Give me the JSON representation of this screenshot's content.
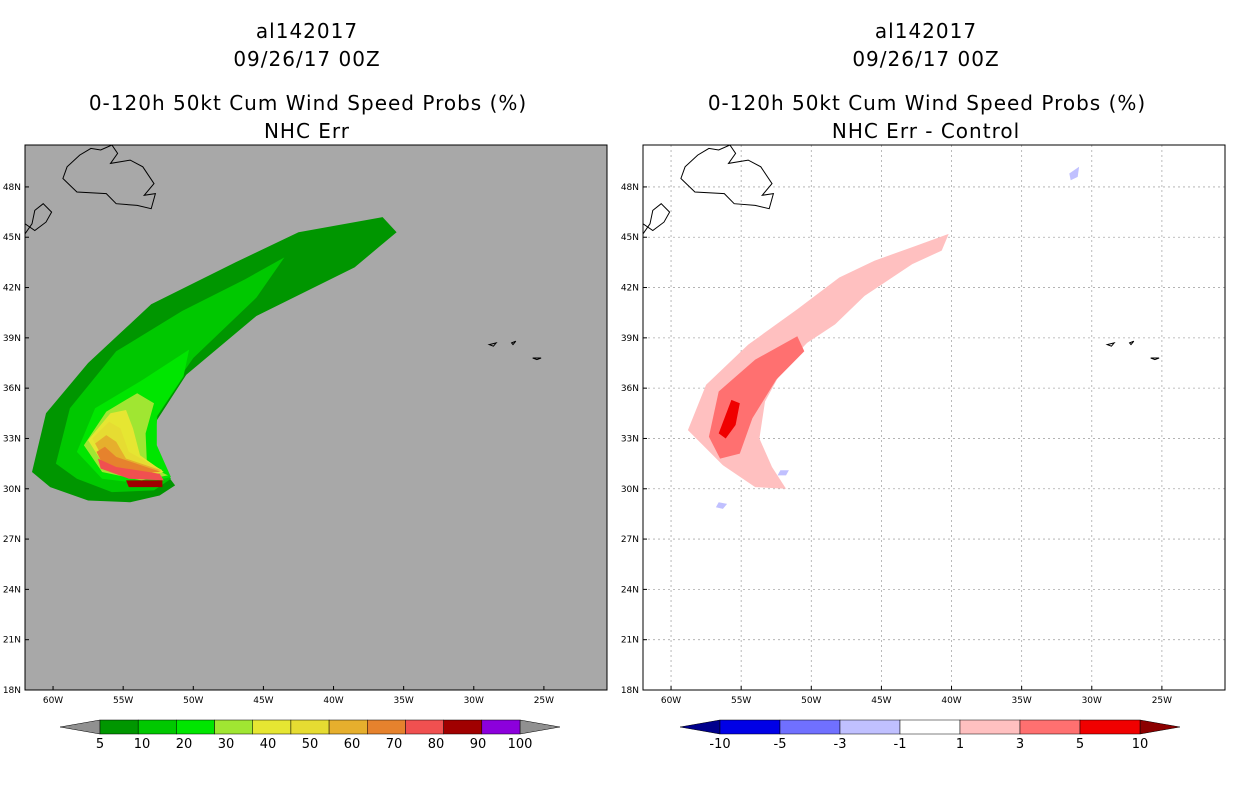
{
  "panels": [
    {
      "storm_id": "al142017",
      "valid_time": "09/26/17 00Z",
      "product": "0-120h 50kt Cum Wind Speed Probs (%)",
      "subtitle": "NHC Err",
      "background_color": "#a8a8a8",
      "grid": false,
      "legend": {
        "labels": [
          "5",
          "10",
          "20",
          "30",
          "40",
          "50",
          "60",
          "70",
          "80",
          "90",
          "100"
        ],
        "colors": [
          "#009600",
          "#00c800",
          "#00e600",
          "#a0e632",
          "#e6e632",
          "#e6dc32",
          "#e6af2d",
          "#e6822d",
          "#f05050",
          "#a00000",
          "#8c00dc"
        ],
        "arrow_left": "#909090",
        "arrow_right": "#909090"
      }
    },
    {
      "storm_id": "al142017",
      "valid_time": "09/26/17 00Z",
      "product": "0-120h 50kt Cum Wind Speed Probs (%)",
      "subtitle": "NHC Err - Control",
      "background_color": "#ffffff",
      "grid": true,
      "legend": {
        "labels": [
          "-10",
          "-5",
          "-3",
          "-1",
          "1",
          "3",
          "5",
          "10"
        ],
        "colors": [
          "#0000e6",
          "#7070ff",
          "#c0c0ff",
          "#ffffff",
          "#ffc0c0",
          "#ff7070",
          "#f00000"
        ],
        "arrow_left": "#00008c",
        "arrow_right": "#8c0000"
      }
    }
  ],
  "axes": {
    "lon_ticks": [
      "60W",
      "55W",
      "50W",
      "45W",
      "40W",
      "35W",
      "30W",
      "25W"
    ],
    "lat_ticks": [
      "48N",
      "45N",
      "42N",
      "39N",
      "36N",
      "33N",
      "30N",
      "27N",
      "24N",
      "21N",
      "18N"
    ],
    "lon_range": [
      -62,
      -20.5
    ],
    "lat_range": [
      18,
      50.5
    ]
  },
  "chart_data": [
    {
      "type": "filled-contour-map",
      "title": "0-120h 50kt Cum Wind Speed Probs (%) — NHC Err",
      "units": "%",
      "levels": [
        5,
        10,
        20,
        30,
        40,
        50,
        60,
        70,
        80,
        90,
        100
      ],
      "contours": [
        {
          "level": 5,
          "path": [
            [
              -61.5,
              31
            ],
            [
              -60.5,
              34.5
            ],
            [
              -57.5,
              37.5
            ],
            [
              -53,
              41
            ],
            [
              -47,
              43.5
            ],
            [
              -42.5,
              45.3
            ],
            [
              -36.5,
              46.2
            ],
            [
              -35.5,
              45.3
            ],
            [
              -38.5,
              43.2
            ],
            [
              -45.5,
              40.3
            ],
            [
              -50.5,
              36.8
            ],
            [
              -53.2,
              33.3
            ],
            [
              -52.2,
              31.2
            ],
            [
              -51.3,
              30.2
            ],
            [
              -52.4,
              29.6
            ],
            [
              -54.5,
              29.2
            ],
            [
              -57.5,
              29.3
            ],
            [
              -60.2,
              30.1
            ]
          ]
        },
        {
          "level": 10,
          "path": [
            [
              -59.8,
              31.5
            ],
            [
              -58.8,
              34.8
            ],
            [
              -55.5,
              38.2
            ],
            [
              -50.8,
              40.6
            ],
            [
              -46.3,
              42.5
            ],
            [
              -43.5,
              43.8
            ],
            [
              -45.5,
              41.4
            ],
            [
              -50,
              37.8
            ],
            [
              -52.5,
              34.8
            ],
            [
              -52.8,
              32.4
            ],
            [
              -51.6,
              30.6
            ],
            [
              -52.8,
              29.9
            ],
            [
              -55.8,
              29.8
            ],
            [
              -58.3,
              30.6
            ]
          ]
        },
        {
          "level": 20,
          "path": [
            [
              -58.3,
              32.2
            ],
            [
              -57,
              34.8
            ],
            [
              -53.6,
              36.5
            ],
            [
              -50.3,
              38.3
            ],
            [
              -50.7,
              36.7
            ],
            [
              -52.6,
              34.3
            ],
            [
              -52.6,
              32.6
            ],
            [
              -51.6,
              30.7
            ],
            [
              -53.6,
              30.3
            ],
            [
              -56.5,
              30.6
            ]
          ]
        },
        {
          "level": 30,
          "path": [
            [
              -57.8,
              32.6
            ],
            [
              -56.2,
              34.6
            ],
            [
              -54,
              35.7
            ],
            [
              -52.8,
              35.1
            ],
            [
              -53.4,
              33.3
            ],
            [
              -53.3,
              31.4
            ],
            [
              -51.8,
              30.8
            ],
            [
              -53.7,
              30.5
            ],
            [
              -56.5,
              31
            ]
          ]
        },
        {
          "level": 40,
          "path": [
            [
              -57.5,
              32.9
            ],
            [
              -55.9,
              34.5
            ],
            [
              -54.8,
              34.7
            ],
            [
              -54.3,
              33.6
            ],
            [
              -53.8,
              32
            ],
            [
              -52.1,
              31
            ],
            [
              -54,
              30.6
            ],
            [
              -56.3,
              31.3
            ]
          ]
        },
        {
          "level": 50,
          "path": [
            [
              -57.2,
              33
            ],
            [
              -56,
              34
            ],
            [
              -55.2,
              33.6
            ],
            [
              -54.6,
              32.2
            ],
            [
              -52.2,
              31.1
            ],
            [
              -54.2,
              30.7
            ],
            [
              -56.2,
              31.5
            ]
          ]
        },
        {
          "level": 60,
          "path": [
            [
              -57,
              32.7
            ],
            [
              -56.2,
              33.2
            ],
            [
              -55.5,
              32.8
            ],
            [
              -54.8,
              31.8
            ],
            [
              -52.3,
              31.1
            ],
            [
              -54.4,
              30.8
            ],
            [
              -56.3,
              31.6
            ]
          ]
        },
        {
          "level": 70,
          "path": [
            [
              -56.9,
              32.2
            ],
            [
              -56.3,
              32.5
            ],
            [
              -55.5,
              31.9
            ],
            [
              -52.3,
              31
            ],
            [
              -54.6,
              30.9
            ],
            [
              -56.6,
              31.7
            ]
          ]
        },
        {
          "level": 80,
          "path": [
            [
              -56.8,
              31.8
            ],
            [
              -55.5,
              31.3
            ],
            [
              -52.4,
              30.9
            ],
            [
              -52.1,
              30.5
            ],
            [
              -54.6,
              30.6
            ],
            [
              -56.6,
              31.2
            ]
          ]
        },
        {
          "level": 90,
          "path": [
            [
              -54.8,
              30.5
            ],
            [
              -52.2,
              30.5
            ],
            [
              -52.2,
              30.1
            ],
            [
              -54.6,
              30.1
            ]
          ]
        }
      ]
    },
    {
      "type": "filled-contour-map",
      "title": "0-120h 50kt Cum Wind Speed Probs (%) — NHC Err - Control",
      "units": "%",
      "levels": [
        -10,
        -5,
        -3,
        -1,
        1,
        3,
        5,
        10
      ],
      "contours": [
        {
          "level": 1,
          "path": [
            [
              -58.8,
              33.5
            ],
            [
              -57.5,
              36.2
            ],
            [
              -54.5,
              38.6
            ],
            [
              -51,
              40.7
            ],
            [
              -48,
              42.6
            ],
            [
              -45.5,
              43.6
            ],
            [
              -42.5,
              44.5
            ],
            [
              -40.2,
              45.2
            ],
            [
              -40.7,
              44.2
            ],
            [
              -42.8,
              43.4
            ],
            [
              -46.2,
              41.5
            ],
            [
              -48.3,
              39.8
            ],
            [
              -50.3,
              38.7
            ],
            [
              -52,
              37.2
            ],
            [
              -53.3,
              35.2
            ],
            [
              -53.7,
              33
            ],
            [
              -52.8,
              31.3
            ],
            [
              -51.8,
              30
            ],
            [
              -54,
              30.1
            ],
            [
              -56.3,
              31.4
            ]
          ]
        },
        {
          "level": 3,
          "path": [
            [
              -57.3,
              33.1
            ],
            [
              -56.6,
              35.8
            ],
            [
              -54,
              37.7
            ],
            [
              -51,
              39.1
            ],
            [
              -50.5,
              38.2
            ],
            [
              -52.5,
              36.5
            ],
            [
              -54.2,
              34.2
            ],
            [
              -55.1,
              32.1
            ],
            [
              -56.5,
              31.8
            ]
          ]
        },
        {
          "level": 5,
          "path": [
            [
              -56.6,
              33.3
            ],
            [
              -55.7,
              35.3
            ],
            [
              -55.1,
              35.1
            ],
            [
              -55.4,
              33.8
            ],
            [
              -56.1,
              33
            ]
          ]
        },
        {
          "level": -1,
          "path": [
            [
              -52.2,
              31.1
            ],
            [
              -51.6,
              31.1
            ],
            [
              -51.8,
              30.8
            ],
            [
              -52.4,
              30.8
            ]
          ]
        },
        {
          "level": -1,
          "path": [
            [
              -56.6,
              29.2
            ],
            [
              -56,
              29.1
            ],
            [
              -56.3,
              28.8
            ],
            [
              -56.8,
              28.9
            ]
          ]
        },
        {
          "level": -1,
          "path": [
            [
              -31.6,
              48.8
            ],
            [
              -30.9,
              49.2
            ],
            [
              -31,
              48.6
            ],
            [
              -31.5,
              48.4
            ]
          ]
        }
      ]
    }
  ]
}
